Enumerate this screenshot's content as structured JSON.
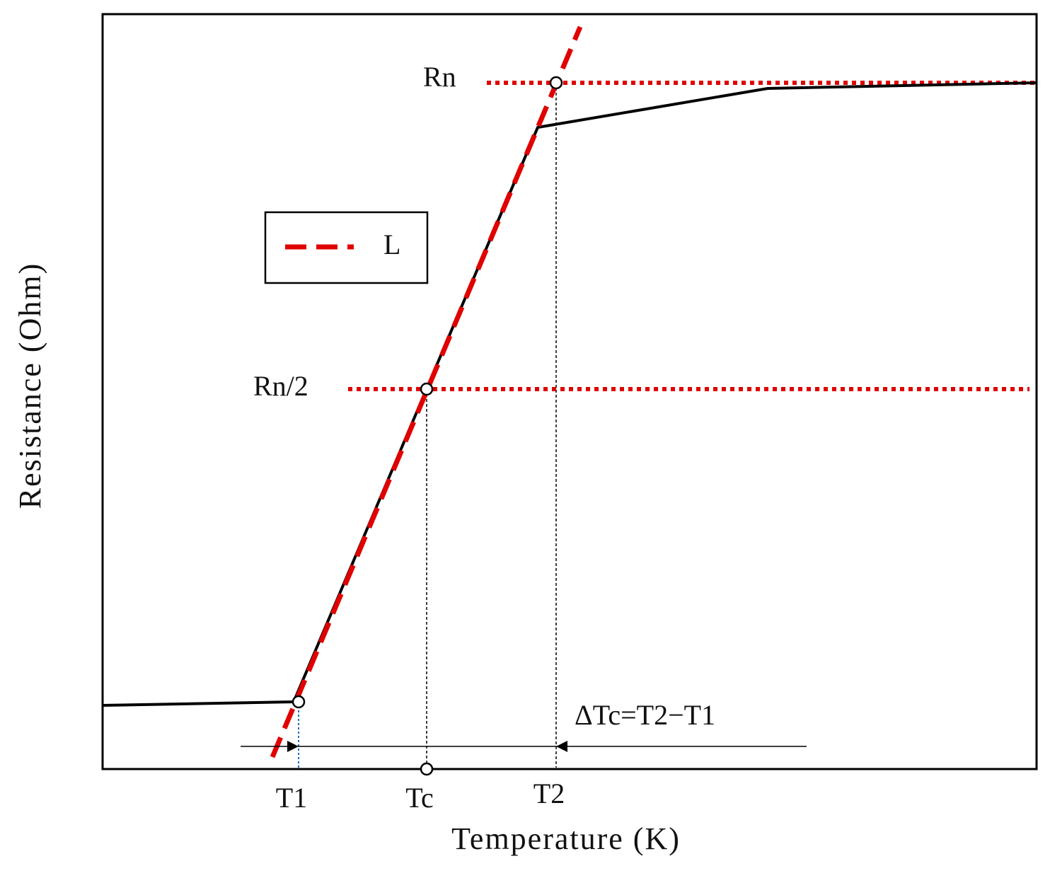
{
  "x_axis_label": "Temperature (K)",
  "y_axis_label": "Resistance (Ohm)",
  "legend": {
    "label": "L"
  },
  "levels": {
    "rn": "Rn",
    "rn_half": "Rn/2"
  },
  "temperatures": {
    "t1": "T1",
    "tc": "Tc",
    "t2": "T2"
  },
  "annotation": "ΔTc=T2−T1"
}
